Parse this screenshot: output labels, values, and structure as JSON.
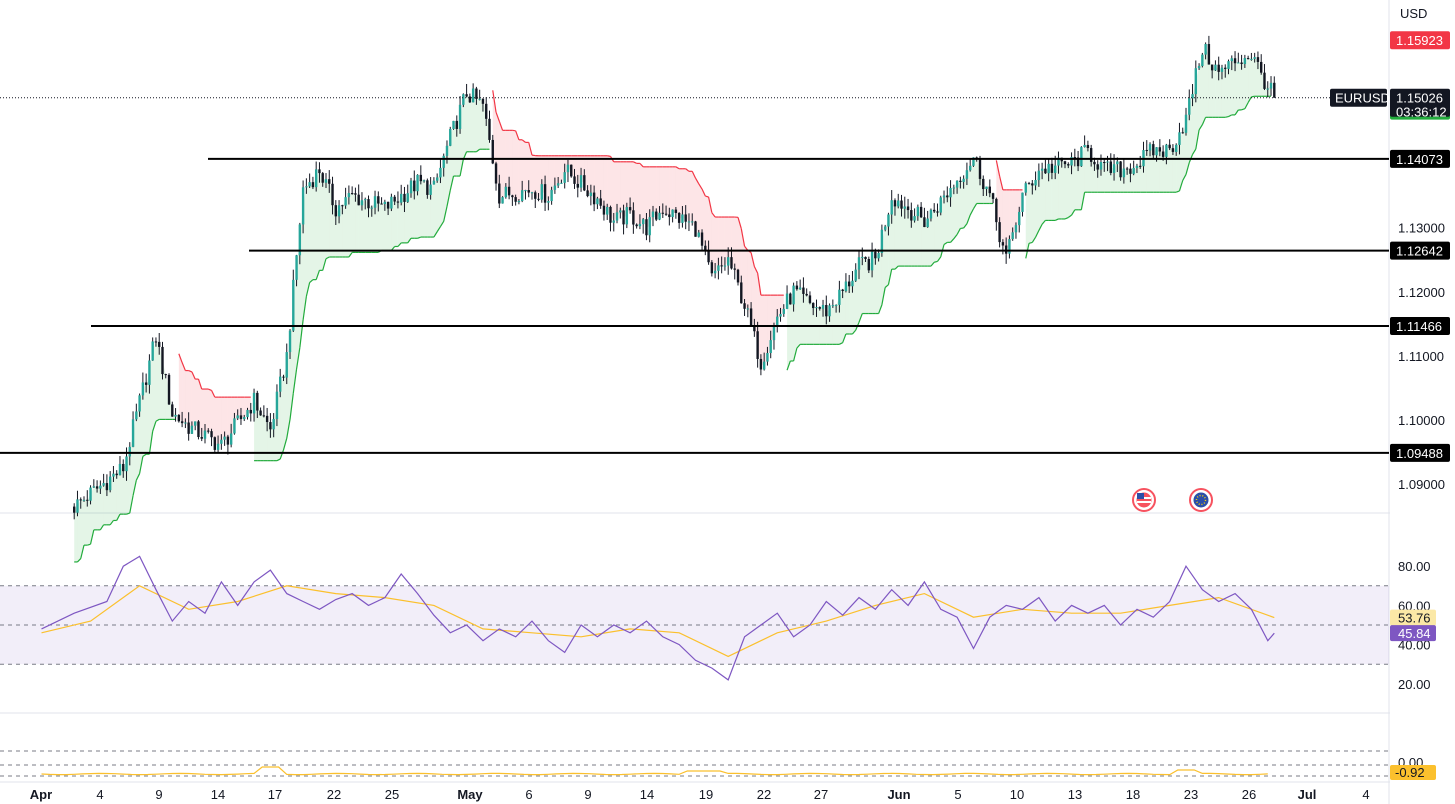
{
  "chart_data": [
    {
      "type": "candlestick",
      "symbol": "EURUSD",
      "currency": "USD",
      "ylim": [
        1.0855,
        1.1655
      ],
      "y_ticks": [
        "1.09000",
        "1.10000",
        "1.11000",
        "1.12000",
        "1.13000"
      ],
      "x_ticks": [
        "Apr",
        "4",
        "9",
        "14",
        "17",
        "22",
        "25",
        "May",
        "6",
        "9",
        "14",
        "19",
        "22",
        "27",
        "Jun",
        "5",
        "10",
        "13",
        "18",
        "23",
        "26",
        "Jul",
        "4"
      ],
      "last_price": "1.15026",
      "countdown": "03:36:12",
      "supertrend_upper": "1.15923",
      "supertrend_lower": "1.14825",
      "horizontal_levels": [
        "1.14073",
        "1.12642",
        "1.11466",
        "1.09488"
      ],
      "close_path": [
        [
          2,
          1.0865
        ],
        [
          5,
          1.0925
        ],
        [
          7,
          1.113
        ],
        [
          8,
          1.101
        ],
        [
          9,
          1.099
        ],
        [
          11,
          1.096
        ],
        [
          13,
          1.103
        ],
        [
          14,
          1.0985
        ],
        [
          15,
          1.11
        ],
        [
          16,
          1.136
        ],
        [
          17,
          1.139
        ],
        [
          18,
          1.133
        ],
        [
          19,
          1.135
        ],
        [
          21,
          1.133
        ],
        [
          22,
          1.135
        ],
        [
          23,
          1.137
        ],
        [
          24,
          1.136
        ],
        [
          25,
          1.144
        ],
        [
          26,
          1.151
        ],
        [
          27,
          1.149
        ],
        [
          28,
          1.135
        ],
        [
          30,
          1.136
        ],
        [
          31,
          1.135
        ],
        [
          32,
          1.139
        ],
        [
          34,
          1.1345
        ],
        [
          35,
          1.131
        ],
        [
          36,
          1.132
        ],
        [
          37,
          1.13
        ],
        [
          38,
          1.133
        ],
        [
          40,
          1.13
        ],
        [
          41,
          1.122
        ],
        [
          42,
          1.125
        ],
        [
          43,
          1.118
        ],
        [
          44,
          1.109
        ],
        [
          45,
          1.116
        ],
        [
          46,
          1.12
        ],
        [
          47,
          1.118
        ],
        [
          48,
          1.117
        ],
        [
          49,
          1.12
        ],
        [
          50,
          1.124
        ],
        [
          51,
          1.125
        ],
        [
          52,
          1.135
        ],
        [
          54,
          1.131
        ],
        [
          55,
          1.134
        ],
        [
          57,
          1.141
        ],
        [
          58,
          1.135
        ],
        [
          59,
          1.125
        ],
        [
          60,
          1.135
        ],
        [
          61,
          1.139
        ],
        [
          63,
          1.14
        ],
        [
          64,
          1.142
        ],
        [
          65,
          1.139
        ],
        [
          66,
          1.139
        ],
        [
          67,
          1.14
        ],
        [
          68,
          1.142
        ],
        [
          69,
          1.142
        ],
        [
          70,
          1.147
        ],
        [
          71,
          1.158
        ],
        [
          72,
          1.154
        ],
        [
          73,
          1.156
        ],
        [
          74,
          1.157
        ],
        [
          75,
          1.152
        ],
        [
          75.4,
          1.15026
        ]
      ]
    },
    {
      "type": "line",
      "indicator": "RSI",
      "ylim": [
        0,
        100
      ],
      "y_ticks": [
        "20.00",
        "40.00",
        "60.00",
        "80.00"
      ],
      "bands": [
        30,
        50,
        70
      ],
      "rsi_value": "45.84",
      "ma_value": "53.76",
      "series": [
        {
          "values": [
            [
              0,
              48
            ],
            [
              2,
              56
            ],
            [
              4,
              62
            ],
            [
              5,
              80
            ],
            [
              6,
              85
            ],
            [
              7,
              68
            ],
            [
              8,
              52
            ],
            [
              9,
              62
            ],
            [
              10,
              56
            ],
            [
              11,
              72
            ],
            [
              12,
              60
            ],
            [
              13,
              72
            ],
            [
              14,
              78
            ],
            [
              15,
              66
            ],
            [
              16,
              62
            ],
            [
              17,
              58
            ],
            [
              18,
              63
            ],
            [
              19,
              66
            ],
            [
              20,
              60
            ],
            [
              21,
              64
            ],
            [
              22,
              76
            ],
            [
              23,
              66
            ],
            [
              24,
              55
            ],
            [
              25,
              46
            ],
            [
              26,
              50
            ],
            [
              27,
              42
            ],
            [
              28,
              48
            ],
            [
              29,
              44
            ],
            [
              30,
              52
            ],
            [
              31,
              42
            ],
            [
              32,
              36
            ],
            [
              33,
              50
            ],
            [
              34,
              44
            ],
            [
              35,
              50
            ],
            [
              36,
              46
            ],
            [
              37,
              52
            ],
            [
              38,
              44
            ],
            [
              39,
              40
            ],
            [
              40,
              32
            ],
            [
              41,
              28
            ],
            [
              42,
              22
            ],
            [
              43,
              44
            ],
            [
              44,
              50
            ],
            [
              45,
              56
            ],
            [
              46,
              44
            ],
            [
              47,
              50
            ],
            [
              48,
              62
            ],
            [
              49,
              55
            ],
            [
              50,
              64
            ],
            [
              51,
              58
            ],
            [
              52,
              68
            ],
            [
              53,
              60
            ],
            [
              54,
              72
            ],
            [
              55,
              58
            ],
            [
              56,
              54
            ],
            [
              57,
              38
            ],
            [
              58,
              54
            ],
            [
              59,
              60
            ],
            [
              60,
              58
            ],
            [
              61,
              64
            ],
            [
              62,
              52
            ],
            [
              63,
              60
            ],
            [
              64,
              56
            ],
            [
              65,
              60
            ],
            [
              66,
              50
            ],
            [
              67,
              58
            ],
            [
              68,
              54
            ],
            [
              69,
              62
            ],
            [
              70,
              80
            ],
            [
              71,
              68
            ],
            [
              72,
              62
            ],
            [
              73,
              66
            ],
            [
              74,
              58
            ],
            [
              75,
              42
            ],
            [
              75.4,
              45.84
            ]
          ]
        },
        {
          "values": [
            [
              0,
              46
            ],
            [
              3,
              52
            ],
            [
              6,
              70
            ],
            [
              9,
              58
            ],
            [
              12,
              62
            ],
            [
              15,
              70
            ],
            [
              18,
              66
            ],
            [
              21,
              64
            ],
            [
              24,
              60
            ],
            [
              27,
              48
            ],
            [
              30,
              46
            ],
            [
              33,
              44
            ],
            [
              36,
              48
            ],
            [
              39,
              46
            ],
            [
              42,
              34
            ],
            [
              45,
              46
            ],
            [
              48,
              52
            ],
            [
              51,
              60
            ],
            [
              54,
              66
            ],
            [
              57,
              54
            ],
            [
              60,
              58
            ],
            [
              63,
              56
            ],
            [
              66,
              56
            ],
            [
              69,
              60
            ],
            [
              72,
              64
            ],
            [
              75.4,
              53.76
            ]
          ]
        }
      ]
    },
    {
      "type": "line",
      "indicator": "oscillator",
      "y_ticks": [
        "0.00"
      ],
      "value": "-0.92"
    }
  ],
  "colors": {
    "supertrend_up": "#22ab3c",
    "supertrend_down": "#f23645",
    "candle_up": "#26a69a",
    "candle_down": "#131722",
    "rsi_line": "#7e57c2",
    "rsi_ma": "#fbc02d",
    "price_tag_dark": "#131722"
  },
  "icons": [
    "us-flag-event-icon",
    "eu-flag-event-icon"
  ]
}
